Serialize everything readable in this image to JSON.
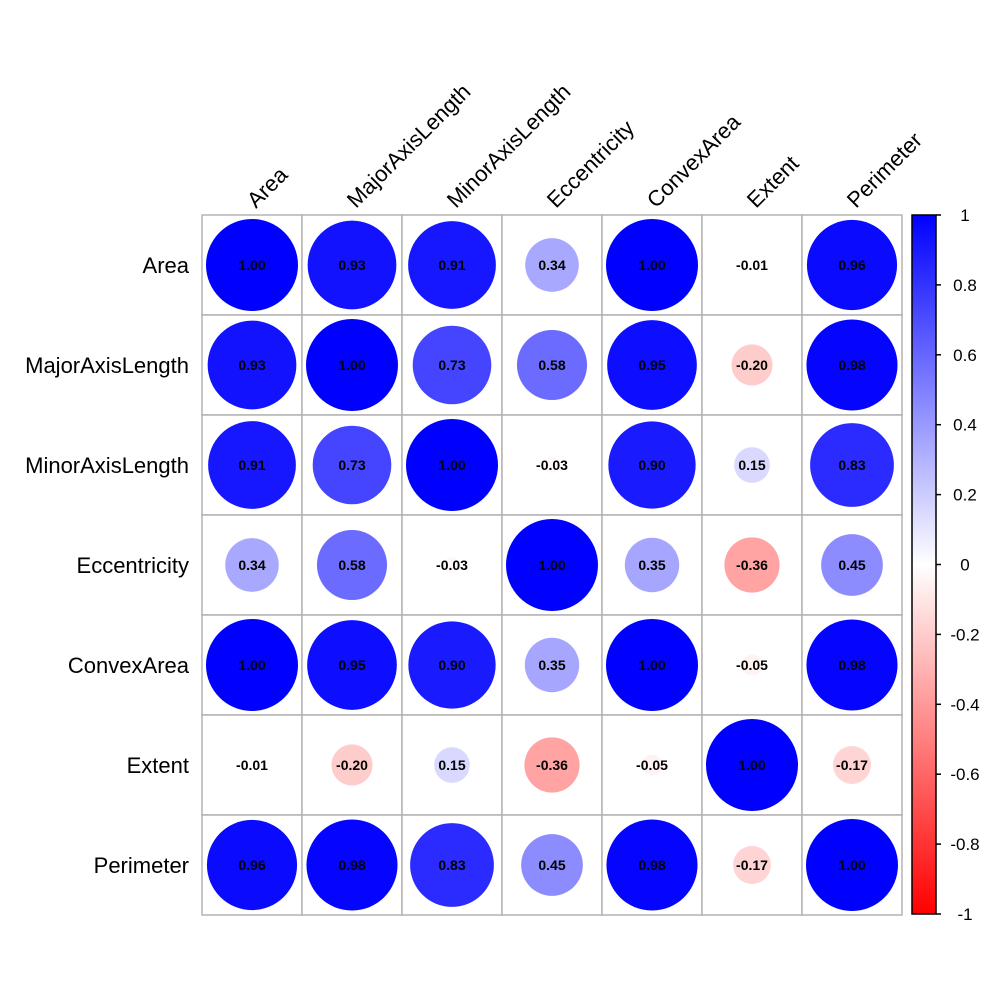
{
  "chart_data": {
    "type": "heatmap",
    "variables": [
      "Area",
      "MajorAxisLength",
      "MinorAxisLength",
      "Eccentricity",
      "ConvexArea",
      "Extent",
      "Perimeter"
    ],
    "matrix": [
      [
        1.0,
        0.93,
        0.91,
        0.34,
        1.0,
        -0.01,
        0.96
      ],
      [
        0.93,
        1.0,
        0.73,
        0.58,
        0.95,
        -0.2,
        0.98
      ],
      [
        0.91,
        0.73,
        1.0,
        -0.03,
        0.9,
        0.15,
        0.83
      ],
      [
        0.34,
        0.58,
        -0.03,
        1.0,
        0.35,
        -0.36,
        0.45
      ],
      [
        1.0,
        0.95,
        0.9,
        0.35,
        1.0,
        -0.05,
        0.98
      ],
      [
        -0.01,
        -0.2,
        0.15,
        -0.36,
        -0.05,
        1.0,
        -0.17
      ],
      [
        0.96,
        0.98,
        0.83,
        0.45,
        0.98,
        -0.17,
        1.0
      ]
    ],
    "labels": [
      [
        "1.00",
        "0.93",
        "0.91",
        "0.34",
        "1.00",
        "-0.01",
        "0.96"
      ],
      [
        "0.93",
        "1.00",
        "0.73",
        "0.58",
        "0.95",
        "-0.20",
        "0.98"
      ],
      [
        "0.91",
        "0.73",
        "1.00",
        "-0.03",
        "0.90",
        "0.15",
        "0.83"
      ],
      [
        "0.34",
        "0.58",
        "-0.03",
        "1.00",
        "0.35",
        "-0.36",
        "0.45"
      ],
      [
        "1.00",
        "0.95",
        "0.90",
        "0.35",
        "1.00",
        "-0.05",
        "0.98"
      ],
      [
        "-0.01",
        "-0.20",
        "0.15",
        "-0.36",
        "-0.05",
        "1.00",
        "-0.17"
      ],
      [
        "0.96",
        "0.98",
        "0.83",
        "0.45",
        "0.98",
        "-0.17",
        "1.00"
      ]
    ],
    "colorbar": {
      "range": [
        -1,
        1
      ],
      "ticks": [
        "1",
        "0.8",
        "0.6",
        "0.4",
        "0.2",
        "0",
        "-0.2",
        "-0.4",
        "-0.6",
        "-0.8",
        "-1"
      ],
      "colors": {
        "negative": "#ff0000",
        "neutral": "#ffffff",
        "positive": "#0000ff"
      }
    },
    "marker": "circle",
    "grid": true
  }
}
